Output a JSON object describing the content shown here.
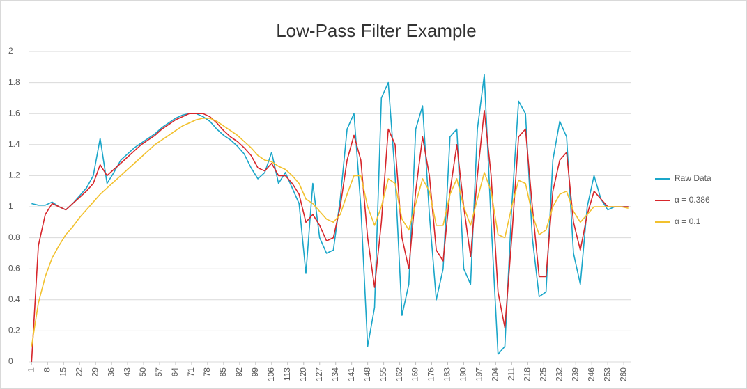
{
  "chart_data": {
    "type": "line",
    "title": "Low-Pass Filter Example",
    "x": [
      1,
      4,
      7,
      10,
      13,
      16,
      19,
      22,
      25,
      28,
      31,
      34,
      37,
      40,
      43,
      46,
      49,
      52,
      55,
      58,
      61,
      64,
      67,
      70,
      73,
      76,
      79,
      82,
      85,
      88,
      91,
      94,
      97,
      100,
      103,
      106,
      109,
      112,
      115,
      118,
      121,
      124,
      127,
      130,
      133,
      136,
      139,
      142,
      145,
      148,
      151,
      154,
      157,
      160,
      163,
      166,
      169,
      172,
      175,
      178,
      181,
      184,
      187,
      190,
      193,
      196,
      199,
      202,
      205,
      208,
      211,
      214,
      217,
      220,
      223,
      226,
      229,
      232,
      235,
      238,
      241,
      244,
      247,
      250,
      253,
      256,
      259,
      262
    ],
    "series": [
      {
        "name": "Raw Data",
        "color": "#1aa6c9",
        "values": [
          1.02,
          1.01,
          1.01,
          1.03,
          1.0,
          0.98,
          1.02,
          1.07,
          1.12,
          1.2,
          1.44,
          1.15,
          1.22,
          1.3,
          1.34,
          1.38,
          1.41,
          1.44,
          1.47,
          1.51,
          1.54,
          1.57,
          1.59,
          1.6,
          1.6,
          1.58,
          1.55,
          1.5,
          1.46,
          1.43,
          1.39,
          1.34,
          1.25,
          1.18,
          1.22,
          1.35,
          1.15,
          1.22,
          1.12,
          1.02,
          0.57,
          1.15,
          0.8,
          0.7,
          0.72,
          1.05,
          1.5,
          1.6,
          1.0,
          0.1,
          0.35,
          1.7,
          1.8,
          1.2,
          0.3,
          0.5,
          1.5,
          1.65,
          0.95,
          0.4,
          0.6,
          1.45,
          1.5,
          0.6,
          0.5,
          1.5,
          1.85,
          0.9,
          0.05,
          0.1,
          1.0,
          1.68,
          1.6,
          0.8,
          0.42,
          0.45,
          1.3,
          1.55,
          1.45,
          0.7,
          0.5,
          1.0,
          1.2,
          1.05,
          0.98,
          1.0,
          1.0,
          1.0
        ]
      },
      {
        "name": "α = 0.386",
        "color": "#d7262b",
        "values": [
          0.0,
          0.75,
          0.95,
          1.02,
          1.0,
          0.98,
          1.02,
          1.06,
          1.1,
          1.15,
          1.27,
          1.2,
          1.24,
          1.28,
          1.32,
          1.36,
          1.4,
          1.43,
          1.46,
          1.5,
          1.53,
          1.56,
          1.58,
          1.6,
          1.6,
          1.6,
          1.58,
          1.54,
          1.49,
          1.45,
          1.42,
          1.38,
          1.33,
          1.25,
          1.23,
          1.28,
          1.2,
          1.2,
          1.15,
          1.08,
          0.9,
          0.95,
          0.88,
          0.78,
          0.8,
          1.0,
          1.3,
          1.46,
          1.3,
          0.8,
          0.48,
          0.9,
          1.5,
          1.4,
          0.8,
          0.6,
          1.1,
          1.45,
          1.2,
          0.72,
          0.65,
          1.1,
          1.4,
          1.0,
          0.68,
          1.2,
          1.62,
          1.2,
          0.45,
          0.22,
          0.8,
          1.45,
          1.5,
          1.0,
          0.55,
          0.55,
          1.1,
          1.3,
          1.35,
          0.9,
          0.72,
          0.95,
          1.1,
          1.05,
          1.0,
          1.0,
          1.0,
          1.0
        ]
      },
      {
        "name": "α = 0.1",
        "color": "#f2c12e",
        "values": [
          0.1,
          0.38,
          0.55,
          0.67,
          0.75,
          0.82,
          0.87,
          0.93,
          0.98,
          1.03,
          1.08,
          1.12,
          1.16,
          1.2,
          1.24,
          1.28,
          1.32,
          1.36,
          1.4,
          1.43,
          1.46,
          1.49,
          1.52,
          1.54,
          1.56,
          1.57,
          1.57,
          1.55,
          1.52,
          1.49,
          1.46,
          1.42,
          1.38,
          1.33,
          1.3,
          1.29,
          1.26,
          1.24,
          1.2,
          1.15,
          1.05,
          1.02,
          0.97,
          0.92,
          0.9,
          0.95,
          1.08,
          1.2,
          1.2,
          1.0,
          0.88,
          1.0,
          1.18,
          1.15,
          0.92,
          0.85,
          1.02,
          1.18,
          1.1,
          0.88,
          0.88,
          1.08,
          1.18,
          1.0,
          0.88,
          1.05,
          1.22,
          1.1,
          0.82,
          0.8,
          1.0,
          1.17,
          1.15,
          0.95,
          0.82,
          0.85,
          1.0,
          1.08,
          1.1,
          0.97,
          0.9,
          0.95,
          1.0,
          1.0,
          1.0,
          1.0,
          1.0,
          0.99
        ]
      }
    ],
    "xlim": [
      0,
      263
    ],
    "xticks": [
      1,
      8,
      15,
      22,
      29,
      36,
      43,
      50,
      57,
      64,
      71,
      78,
      85,
      92,
      99,
      106,
      113,
      120,
      127,
      134,
      141,
      148,
      155,
      162,
      169,
      176,
      183,
      190,
      197,
      204,
      211,
      218,
      225,
      232,
      239,
      246,
      253,
      260
    ],
    "ylim": [
      0,
      2
    ],
    "yticks": [
      0,
      0.2,
      0.4,
      0.6,
      0.8,
      1,
      1.2,
      1.4,
      1.6,
      1.8,
      2
    ],
    "grid": true,
    "legend": "right"
  }
}
